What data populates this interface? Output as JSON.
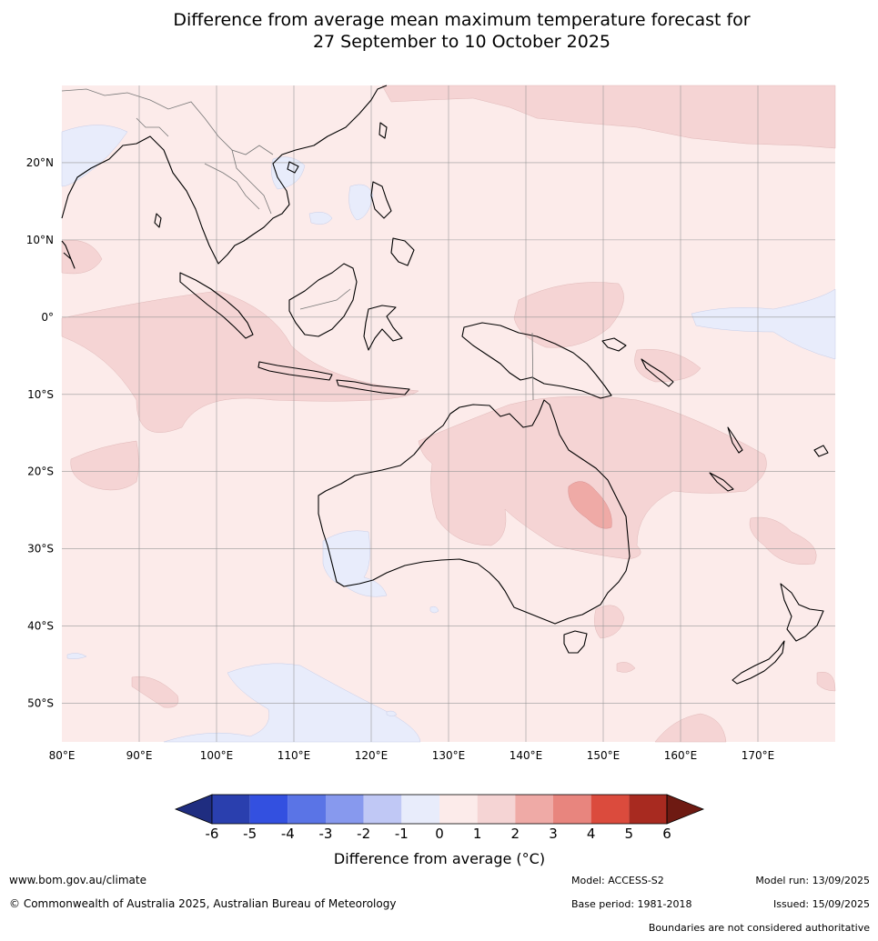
{
  "title": {
    "line1": "Difference from average mean maximum temperature forecast for",
    "line2": "27 September to 10 October 2025"
  },
  "axes": {
    "lon_labels": [
      "80°E",
      "90°E",
      "100°E",
      "110°E",
      "120°E",
      "130°E",
      "140°E",
      "150°E",
      "160°E",
      "170°E"
    ],
    "lat_labels": [
      "20°N",
      "10°N",
      "0°",
      "10°S",
      "20°S",
      "30°S",
      "40°S",
      "50°S"
    ],
    "lon_range": [
      80,
      180
    ],
    "lat_range": [
      -55,
      30
    ],
    "grid": true
  },
  "colorbar": {
    "label": "Difference from average (°C)",
    "ticks": [
      "-6",
      "-5",
      "-4",
      "-3",
      "-2",
      "-1",
      "0",
      "1",
      "2",
      "3",
      "4",
      "5",
      "6"
    ],
    "colors": [
      "#1f2d80",
      "#2a3fae",
      "#3350e0",
      "#5a74e6",
      "#8799ee",
      "#c0c8f5",
      "#e8ecfb",
      "#fcebea",
      "#f5d4d4",
      "#efaaa6",
      "#e8857e",
      "#db4b3d",
      "#a82a20",
      "#6e1a12"
    ]
  },
  "footer": {
    "website": "www.bom.gov.au/climate",
    "copyright": "© Commonwealth of Australia 2025, Australian Bureau of Meteorology",
    "model": "Model: ACCESS-S2",
    "base_period": "Base period: 1981-2018",
    "model_run": "Model run: 13/09/2025",
    "issued": "Issued: 15/09/2025",
    "disclaimer": "Boundaries are not considered authoritative"
  }
}
